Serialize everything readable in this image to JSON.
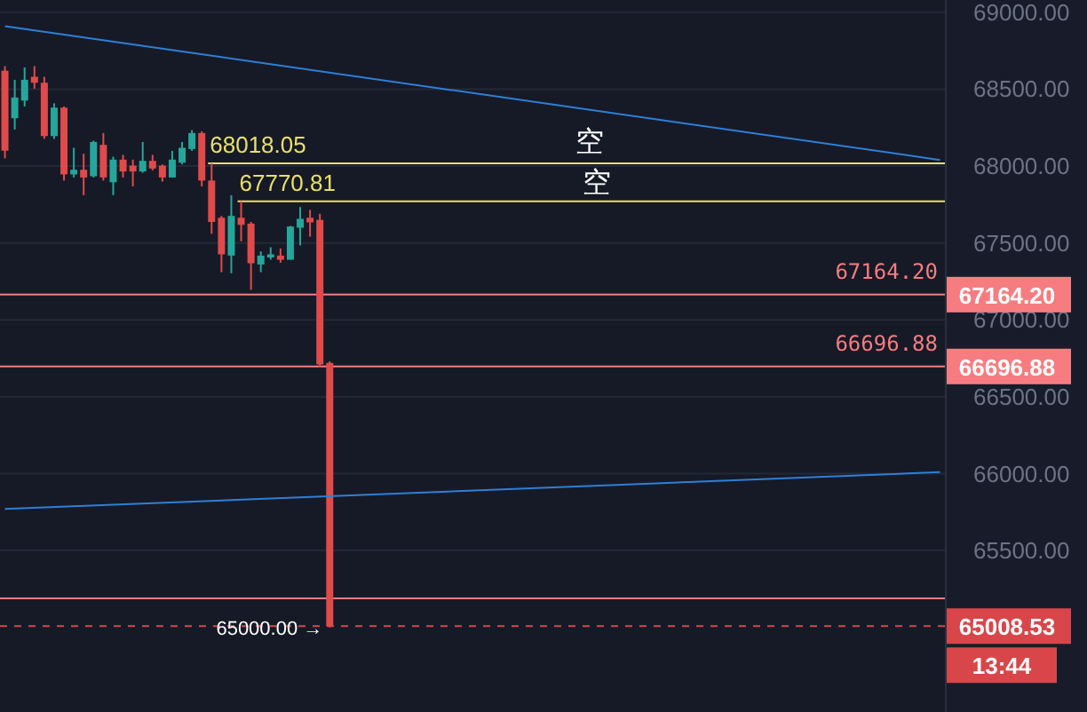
{
  "chart_data": {
    "type": "candlestick",
    "categories": [
      null,
      null,
      null,
      null,
      null,
      null,
      null,
      null,
      null,
      null,
      null,
      null,
      null,
      null,
      null,
      null,
      null,
      null,
      null,
      null,
      null,
      null,
      null,
      null,
      null,
      null,
      null,
      null,
      null,
      null,
      null,
      null,
      null,
      null,
      null,
      null,
      null,
      null,
      null,
      null,
      null,
      null,
      null,
      null,
      null,
      null,
      null,
      null,
      null,
      null,
      null,
      null,
      null,
      null,
      null,
      null,
      null,
      null,
      null,
      null,
      null,
      null,
      null,
      null,
      null,
      null,
      null,
      null,
      null,
      null,
      null,
      null,
      null,
      null,
      null,
      null,
      null,
      null,
      null,
      null,
      null,
      null,
      null,
      null,
      null,
      null,
      null,
      null,
      null,
      null,
      null,
      null,
      null,
      null,
      null,
      null
    ],
    "ylim": [
      64450,
      69080
    ],
    "yticks": [
      {
        "value": 65500,
        "label": "65500.00"
      },
      {
        "value": 66000,
        "label": "66000.00"
      },
      {
        "value": 66500,
        "label": "66500.00"
      },
      {
        "value": 67000,
        "label": "67000.00"
      },
      {
        "value": 67500,
        "label": "67500.00"
      },
      {
        "value": 68000,
        "label": "68000.00"
      },
      {
        "value": 68500,
        "label": "68500.00"
      },
      {
        "value": 69000,
        "label": "69000.00"
      }
    ],
    "tick_labels": "y",
    "grid": "y",
    "legend": false,
    "series": [
      {
        "ohlc": [
          [
            68620,
            68650,
            68050,
            68100
          ],
          [
            68311,
            68561,
            68238,
            68446
          ],
          [
            68426,
            68642,
            68388,
            68561
          ],
          [
            68581,
            68650,
            68503,
            68542
          ],
          [
            68542,
            68581,
            68177,
            68195
          ],
          [
            68195,
            68408,
            68177,
            68380
          ],
          [
            68380,
            68388,
            67906,
            67946
          ],
          [
            67946,
            68119,
            67926,
            67976
          ],
          [
            67976,
            68080,
            67811,
            67926
          ],
          [
            67934,
            68165,
            67926,
            68157
          ],
          [
            68138,
            68215,
            67906,
            67926
          ],
          [
            67895,
            68061,
            67811,
            68042
          ],
          [
            68042,
            68073,
            67926,
            67965
          ],
          [
            68003,
            68042,
            67868,
            67965
          ],
          [
            67965,
            68157,
            67957,
            68034
          ],
          [
            68034,
            68073,
            67972,
            67984
          ],
          [
            68003,
            68011,
            67899,
            67926
          ],
          [
            67926,
            68099,
            67926,
            68042
          ],
          [
            68022,
            68157,
            68011,
            68119
          ],
          [
            68111,
            68234,
            68099,
            68215
          ],
          [
            68215,
            68226,
            67868,
            67906
          ],
          [
            67906,
            68018.05,
            67560,
            67637
          ],
          [
            67664,
            67676,
            67310,
            67426
          ],
          [
            67418,
            67811,
            67303,
            67676
          ],
          [
            67664,
            67770.81,
            67511,
            67618
          ],
          [
            67626,
            67637,
            67195,
            67368
          ],
          [
            67360,
            67445,
            67310,
            67418
          ],
          [
            67406,
            67472,
            67391,
            67426
          ],
          [
            67418,
            67464,
            67372,
            67391
          ],
          [
            67391,
            67611,
            67391,
            67607
          ],
          [
            67599,
            67734,
            67484,
            67657
          ],
          [
            67664,
            67715,
            67541,
            67634
          ],
          [
            67650,
            67690,
            66690,
            66710
          ],
          [
            66720,
            66730,
            65000,
            65008.53
          ],
          null,
          null,
          null,
          null,
          null,
          null,
          null,
          null,
          null,
          null,
          null,
          null,
          null,
          null,
          null,
          null,
          null,
          null,
          null,
          null,
          null,
          null,
          null,
          null,
          null,
          null,
          null,
          null,
          null,
          null,
          null,
          null,
          null,
          null,
          null,
          null,
          null,
          null,
          null,
          null,
          null,
          null,
          null,
          null,
          null,
          null,
          null,
          null,
          null,
          null,
          null,
          null,
          null,
          null,
          null,
          null,
          null,
          null,
          null,
          null,
          null,
          null
        ],
        "colors": [
          "#e04a4a",
          "#26a69a",
          "#26a69a",
          "#e04a4a",
          "#e04a4a",
          "#26a69a",
          "#e04a4a",
          "#26a69a",
          "#e04a4a",
          "#26a69a",
          "#e04a4a",
          "#26a69a",
          "#e04a4a",
          "#e04a4a",
          "#26a69a",
          "#e04a4a",
          "#e04a4a",
          "#26a69a",
          "#26a69a",
          "#26a69a",
          "#e04a4a",
          "#e04a4a",
          "#e04a4a",
          "#26a69a",
          "#e04a4a",
          "#e04a4a",
          "#26a69a",
          "#26a69a",
          "#e04a4a",
          "#26a69a",
          "#26a69a",
          "#e04a4a",
          "#e04a4a",
          "#e04a4a",
          null,
          null,
          null,
          null,
          null,
          null,
          null,
          null,
          null,
          null,
          null,
          null,
          null,
          null,
          null,
          null,
          null,
          null,
          null,
          null,
          null,
          null,
          null,
          null,
          null,
          null,
          null,
          null,
          null,
          null,
          null,
          null,
          null,
          null,
          null,
          null,
          null,
          null,
          null,
          null,
          null,
          null,
          null,
          null,
          null,
          null,
          null,
          null,
          null,
          null,
          null,
          null,
          null,
          null,
          null,
          null,
          null,
          null,
          null,
          null,
          null,
          null
        ]
      },
      {
        "type": "line",
        "color": "#2f7fd6",
        "values": [
          68910,
          null,
          null,
          null,
          null,
          null,
          null,
          null,
          null,
          null,
          null,
          null,
          null,
          null,
          null,
          null,
          null,
          null,
          null,
          null,
          null,
          null,
          null,
          null,
          null,
          null,
          null,
          null,
          null,
          null,
          null,
          null,
          null,
          null,
          null,
          null,
          null,
          null,
          null,
          null,
          null,
          null,
          null,
          null,
          null,
          null,
          null,
          null,
          null,
          null,
          null,
          null,
          null,
          null,
          null,
          null,
          null,
          null,
          null,
          null,
          null,
          null,
          null,
          null,
          null,
          null,
          null,
          null,
          null,
          null,
          null,
          null,
          null,
          null,
          null,
          null,
          null,
          null,
          null,
          null,
          null,
          null,
          null,
          null,
          null,
          null,
          null,
          null,
          null,
          null,
          null,
          null,
          null,
          null,
          null,
          68040
        ]
      },
      {
        "type": "line",
        "color": "#2f7fd6",
        "values": [
          65770,
          null,
          null,
          null,
          null,
          null,
          null,
          null,
          null,
          null,
          null,
          null,
          null,
          null,
          null,
          null,
          null,
          null,
          null,
          null,
          null,
          null,
          null,
          null,
          null,
          null,
          null,
          null,
          null,
          null,
          null,
          null,
          null,
          null,
          null,
          null,
          null,
          null,
          null,
          null,
          null,
          null,
          null,
          null,
          null,
          null,
          null,
          null,
          null,
          null,
          null,
          null,
          null,
          null,
          null,
          null,
          null,
          null,
          null,
          null,
          null,
          null,
          null,
          null,
          null,
          null,
          null,
          null,
          null,
          null,
          null,
          null,
          null,
          null,
          null,
          null,
          null,
          null,
          null,
          null,
          null,
          null,
          null,
          null,
          null,
          null,
          null,
          null,
          null,
          null,
          null,
          null,
          null,
          null,
          null,
          66010
        ]
      }
    ],
    "ref_lines": [
      {
        "axis": "y",
        "value": 68018.05,
        "label": "68018.05",
        "color": "#e8e06a"
      },
      {
        "axis": "y",
        "value": 67770.81,
        "label": "67770.81",
        "color": "#e8e06a"
      },
      {
        "axis": "y",
        "value": 67164.2,
        "label": "67164.20",
        "color": "#f77c80"
      },
      {
        "axis": "y",
        "value": 66696.88,
        "label": "66696.88",
        "color": "#f77c80"
      },
      {
        "axis": "y",
        "value": 65189,
        "color": "#f77c80"
      },
      {
        "axis": "y",
        "value": 65008.53,
        "label": "65008.53",
        "color": "#d8464a",
        "line_style": "dashed"
      }
    ],
    "annotations": [
      "空",
      "空",
      {
        "text": "65000.00 →",
        "y": 65000
      },
      "67164.20",
      "66696.88",
      "13:44"
    ]
  }
}
